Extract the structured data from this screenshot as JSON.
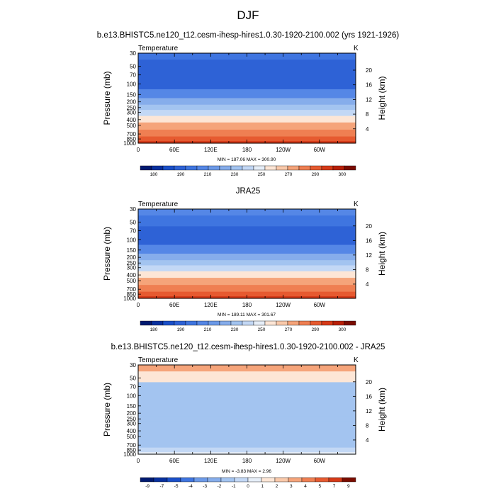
{
  "figure": {
    "main_title": "DJF"
  },
  "chart_data": [
    {
      "type": "heatmap",
      "id": "model",
      "title": "b.e13.BHISTC5.ne120_t12.cesm-ihesp-hires1.0.30-1920-2100.002 (yrs 1921-1926)",
      "variable": "Temperature",
      "units": "K",
      "ylabel": "Pressure (mb)",
      "ylabel_right": "Height (km)",
      "x_ticks": [
        "0",
        "60E",
        "120E",
        "180",
        "120W",
        "60W"
      ],
      "y_ticks": [
        "30",
        "50",
        "70",
        "100",
        "150",
        "200",
        "250",
        "300",
        "400",
        "500",
        "700",
        "850",
        "1000"
      ],
      "y_ticks_right": [
        "20",
        "16",
        "12",
        "8",
        "4"
      ],
      "stats": "MIN = 187.06   MAX = 300.90",
      "min": 187.06,
      "max": 300.9,
      "colorbar_labels": [
        "180",
        "190",
        "210",
        "230",
        "250",
        "270",
        "290",
        "300"
      ],
      "colorbar_colors": [
        "#001a70",
        "#08309e",
        "#1a4fc9",
        "#2e62d6",
        "#3f75e0",
        "#5587e6",
        "#6c9ae8",
        "#86adeb",
        "#a3c4f0",
        "#c3d8f5",
        "#e6eef8",
        "#fde6d6",
        "#f9c9aa",
        "#f5a47a",
        "#ef7f52",
        "#e65a30",
        "#d63a18",
        "#b82008",
        "#7a0c00"
      ],
      "bands": [
        {
          "p": 30,
          "color": "#3f75e0"
        },
        {
          "p": 50,
          "color": "#2e62d6"
        },
        {
          "p": 70,
          "color": "#2e62d6"
        },
        {
          "p": 100,
          "color": "#2e62d6"
        },
        {
          "p": 150,
          "color": "#5587e6"
        },
        {
          "p": 200,
          "color": "#86adeb"
        },
        {
          "p": 250,
          "color": "#a3c4f0"
        },
        {
          "p": 300,
          "color": "#c3d8f5"
        },
        {
          "p": 400,
          "color": "#fde6d6"
        },
        {
          "p": 500,
          "color": "#f5a47a"
        },
        {
          "p": 700,
          "color": "#ef7f52"
        },
        {
          "p": 850,
          "color": "#e65a30"
        },
        {
          "p": 1000,
          "color": "#d63a18"
        }
      ]
    },
    {
      "type": "heatmap",
      "id": "reanalysis",
      "title": "JRA25",
      "variable": "Temperature",
      "units": "K",
      "ylabel": "Pressure (mb)",
      "ylabel_right": "Height (km)",
      "x_ticks": [
        "0",
        "60E",
        "120E",
        "180",
        "120W",
        "60W"
      ],
      "y_ticks": [
        "30",
        "50",
        "70",
        "100",
        "150",
        "200",
        "250",
        "300",
        "400",
        "500",
        "700",
        "850",
        "1000"
      ],
      "y_ticks_right": [
        "20",
        "16",
        "12",
        "8",
        "4"
      ],
      "stats": "MIN = 189.11   MAX = 301.67",
      "min": 189.11,
      "max": 301.67,
      "colorbar_labels": [
        "180",
        "190",
        "210",
        "230",
        "250",
        "270",
        "290",
        "300"
      ],
      "colorbar_colors": [
        "#001a70",
        "#08309e",
        "#1a4fc9",
        "#2e62d6",
        "#3f75e0",
        "#5587e6",
        "#6c9ae8",
        "#86adeb",
        "#a3c4f0",
        "#c3d8f5",
        "#e6eef8",
        "#fde6d6",
        "#f9c9aa",
        "#f5a47a",
        "#ef7f52",
        "#e65a30",
        "#d63a18",
        "#b82008",
        "#7a0c00"
      ],
      "bands": [
        {
          "p": 30,
          "color": "#5587e6"
        },
        {
          "p": 50,
          "color": "#3f75e0"
        },
        {
          "p": 70,
          "color": "#2e62d6"
        },
        {
          "p": 100,
          "color": "#2e62d6"
        },
        {
          "p": 150,
          "color": "#5587e6"
        },
        {
          "p": 200,
          "color": "#86adeb"
        },
        {
          "p": 250,
          "color": "#a3c4f0"
        },
        {
          "p": 300,
          "color": "#c3d8f5"
        },
        {
          "p": 400,
          "color": "#fde6d6"
        },
        {
          "p": 500,
          "color": "#f5a47a"
        },
        {
          "p": 700,
          "color": "#ef7f52"
        },
        {
          "p": 850,
          "color": "#e65a30"
        },
        {
          "p": 1000,
          "color": "#d63a18"
        }
      ]
    },
    {
      "type": "heatmap",
      "id": "difference",
      "title": "b.e13.BHISTC5.ne120_t12.cesm-ihesp-hires1.0.30-1920-2100.002 - JRA25",
      "variable": "Temperature",
      "units": "K",
      "ylabel": "Pressure (mb)",
      "ylabel_right": "Height (km)",
      "x_ticks": [
        "0",
        "60E",
        "120E",
        "180",
        "120W",
        "60W"
      ],
      "y_ticks": [
        "30",
        "50",
        "70",
        "100",
        "150",
        "200",
        "250",
        "300",
        "400",
        "500",
        "700",
        "850",
        "1000"
      ],
      "y_ticks_right": [
        "20",
        "16",
        "12",
        "8",
        "4"
      ],
      "stats": "MIN = -3.83   MAX =  2.96",
      "min": -3.83,
      "max": 2.96,
      "colorbar_labels": [
        "-9",
        "-7",
        "-5",
        "-4",
        "-3",
        "-2",
        "-1",
        "0",
        "1",
        "2",
        "3",
        "4",
        "5",
        "7",
        "9"
      ],
      "colorbar_colors": [
        "#001a70",
        "#08309e",
        "#1a4fc9",
        "#3f75e0",
        "#6c9ae8",
        "#86adeb",
        "#a3c4f0",
        "#c3d8f5",
        "#e6eef8",
        "#fde6d6",
        "#f9c9aa",
        "#f5a47a",
        "#ef7f52",
        "#e65a30",
        "#d63a18",
        "#7a0c00"
      ],
      "bands": [
        {
          "p": 30,
          "color": "#f5a47a"
        },
        {
          "p": 50,
          "color": "#fde6d6"
        },
        {
          "p": 70,
          "color": "#a3c4f0"
        },
        {
          "p": 100,
          "color": "#a3c4f0"
        },
        {
          "p": 150,
          "color": "#a3c4f0"
        },
        {
          "p": 200,
          "color": "#a3c4f0"
        },
        {
          "p": 250,
          "color": "#a3c4f0"
        },
        {
          "p": 300,
          "color": "#a3c4f0"
        },
        {
          "p": 400,
          "color": "#a3c4f0"
        },
        {
          "p": 500,
          "color": "#a3c4f0"
        },
        {
          "p": 700,
          "color": "#a3c4f0"
        },
        {
          "p": 850,
          "color": "#c3d8f5"
        },
        {
          "p": 1000,
          "color": "#e6eef8"
        }
      ]
    }
  ]
}
